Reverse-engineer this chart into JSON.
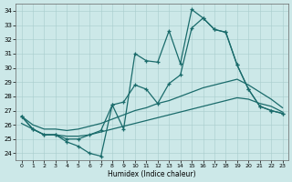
{
  "xlabel": "Humidex (Indice chaleur)",
  "xlim": [
    -0.5,
    23.5
  ],
  "ylim": [
    23.5,
    34.5
  ],
  "yticks": [
    24,
    25,
    26,
    27,
    28,
    29,
    30,
    31,
    32,
    33,
    34
  ],
  "xticks": [
    0,
    1,
    2,
    3,
    4,
    5,
    6,
    7,
    8,
    9,
    10,
    11,
    12,
    13,
    14,
    15,
    16,
    17,
    18,
    19,
    20,
    21,
    22,
    23
  ],
  "bg_color": "#cce8e8",
  "line_color": "#1a6b6b",
  "series": {
    "line1_marked": {
      "x": [
        0,
        1,
        2,
        3,
        4,
        5,
        6,
        7,
        8,
        9,
        10,
        11,
        12,
        13,
        14,
        15,
        16,
        17,
        18,
        19,
        20,
        21,
        22,
        23
      ],
      "y": [
        26.6,
        25.7,
        25.3,
        25.3,
        24.8,
        24.5,
        24.0,
        23.8,
        27.4,
        25.7,
        31.0,
        30.5,
        30.4,
        32.6,
        30.3,
        34.1,
        33.5,
        32.7,
        32.5,
        30.2,
        28.5,
        27.3,
        27.0,
        26.8
      ]
    },
    "line2_marked": {
      "x": [
        0,
        1,
        2,
        3,
        4,
        5,
        6,
        7,
        8,
        9,
        10,
        11,
        12,
        13,
        14,
        15,
        16,
        17,
        18,
        19,
        20,
        21,
        22,
        23
      ],
      "y": [
        26.6,
        25.7,
        25.3,
        25.3,
        25.0,
        25.0,
        25.3,
        25.6,
        27.4,
        27.6,
        28.8,
        28.5,
        27.5,
        28.9,
        29.5,
        32.8,
        33.5,
        32.7,
        32.5,
        30.2,
        28.5,
        27.3,
        27.0,
        26.8
      ]
    },
    "line3_smooth": {
      "x": [
        0,
        1,
        2,
        3,
        4,
        5,
        6,
        7,
        8,
        9,
        10,
        11,
        12,
        13,
        14,
        15,
        16,
        17,
        18,
        19,
        20,
        21,
        22,
        23
      ],
      "y": [
        26.1,
        25.7,
        25.3,
        25.3,
        25.2,
        25.2,
        25.3,
        25.5,
        25.7,
        25.9,
        26.1,
        26.3,
        26.5,
        26.7,
        26.9,
        27.1,
        27.3,
        27.5,
        27.7,
        27.9,
        27.8,
        27.5,
        27.3,
        26.9
      ]
    },
    "line4_smooth": {
      "x": [
        0,
        1,
        2,
        3,
        4,
        5,
        6,
        7,
        8,
        9,
        10,
        11,
        12,
        13,
        14,
        15,
        16,
        17,
        18,
        19,
        20,
        21,
        22,
        23
      ],
      "y": [
        26.6,
        26.0,
        25.7,
        25.7,
        25.6,
        25.7,
        25.9,
        26.1,
        26.4,
        26.7,
        27.0,
        27.2,
        27.5,
        27.7,
        28.0,
        28.3,
        28.6,
        28.8,
        29.0,
        29.2,
        28.8,
        28.3,
        27.8,
        27.2
      ]
    }
  }
}
